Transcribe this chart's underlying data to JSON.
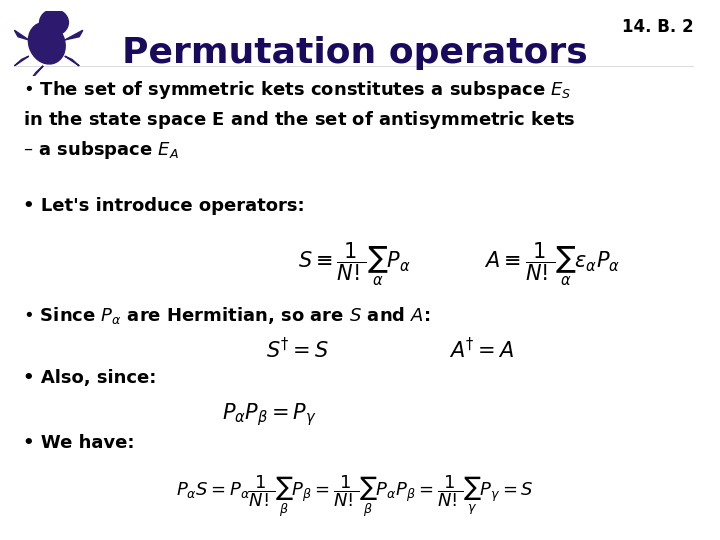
{
  "title": "Permutation operators",
  "slide_number": "14. B. 2",
  "background_color": "#ffffff",
  "text_color": "#000000",
  "title_color": "#1a0a5e",
  "slide_num_color": "#000000",
  "title_fontsize": 26,
  "body_fontsize": 14,
  "math_fontsize": 14,
  "bullet1": "The set of symmetric kets constitutes a subspace $E_S$\nin the state space $\\mathbf{E}$ and the set of antisymmetric kets\n– a subspace $E_A$",
  "bullet2": "Let's introduce operators:",
  "formula_SA": "$S \\equiv \\dfrac{1}{N!}\\sum_{\\alpha} P_{\\alpha} \\qquad A \\equiv \\dfrac{1}{N!}\\sum_{\\alpha} \\varepsilon_{\\alpha} P_{\\alpha}$",
  "bullet3": "Since $P_{\\alpha}$ are Hermitian, so are $S$ and $A$:",
  "formula_herm": "$S^{\\dagger} = S \\qquad\\qquad A^{\\dagger} = A$",
  "bullet4": "Also, since:",
  "formula_prod": "$P_{\\alpha}P_{\\beta} = P_{\\gamma}$",
  "bullet5": "We have:",
  "formula_PS": "$P_{\\alpha}S = P_{\\alpha}\\dfrac{1}{N!}\\sum_{\\beta}P_{\\beta} = \\dfrac{1}{N!}\\sum_{\\beta}P_{\\alpha}P_{\\beta} = \\dfrac{1}{N!}\\sum_{\\gamma}P_{\\gamma} = S$"
}
